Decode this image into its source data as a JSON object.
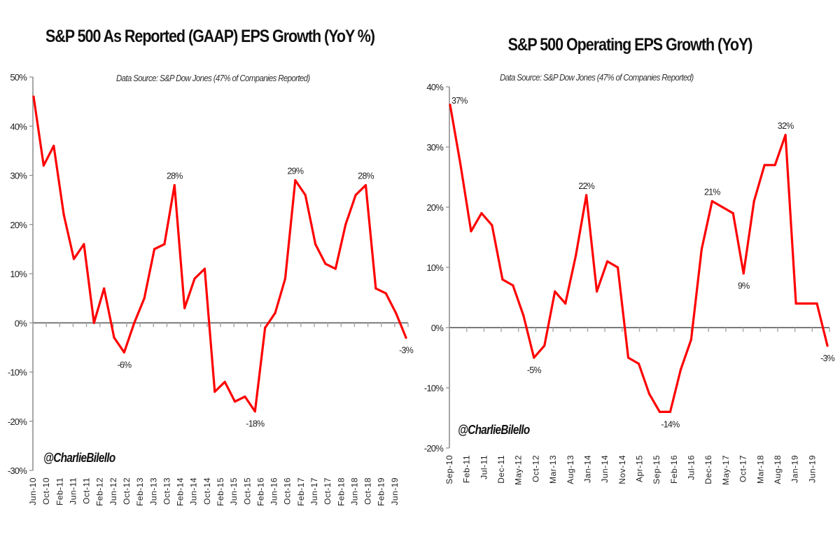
{
  "chart_data": [
    {
      "type": "line",
      "title": "S&P 500 As Reported (GAAP) EPS Growth (YoY %)",
      "subtitle": "Data Source: S&P Dow Jones (47% of Companies Reported)",
      "credit": "@CharlieBilello",
      "xlabel": "",
      "ylabel": "",
      "ylim": [
        -30,
        50
      ],
      "yticks": [
        50,
        40,
        30,
        20,
        10,
        0,
        -10,
        -20,
        -30
      ],
      "ytick_labels": [
        "50%",
        "40%",
        "30%",
        "20%",
        "10%",
        "0%",
        "-10%",
        "-20%",
        "-30%"
      ],
      "category_labels": [
        "Jun-10",
        "Oct-10",
        "Feb-11",
        "Jun-11",
        "Oct-11",
        "Feb-12",
        "Jun-12",
        "Oct-12",
        "Feb-13",
        "Jun-13",
        "Oct-13",
        "Feb-14",
        "Jun-14",
        "Oct-14",
        "Feb-15",
        "Jun-15",
        "Oct-15",
        "Feb-16",
        "Jun-16",
        "Oct-16",
        "Feb-17",
        "Jun-17",
        "Oct-17",
        "Feb-18",
        "Jun-18",
        "Oct-18",
        "Feb-19",
        "Jun-19"
      ],
      "x_range_months": [
        0,
        112
      ],
      "grid": false,
      "series": [
        {
          "name": "GAAP EPS Growth YoY",
          "color": "#ff0000",
          "values": [
            46,
            32,
            36,
            22,
            13,
            16,
            0,
            7,
            -3,
            -6,
            0,
            5,
            15,
            16,
            28,
            3,
            9,
            11,
            -14,
            -12,
            -16,
            -15,
            -18,
            -1,
            2,
            9,
            29,
            26,
            16,
            12,
            11,
            20,
            26,
            28,
            7,
            6,
            2,
            -3
          ]
        }
      ],
      "data_labels": [
        {
          "index": 9,
          "text": "-6%",
          "position": "below"
        },
        {
          "index": 14,
          "text": "28%",
          "position": "above"
        },
        {
          "index": 22,
          "text": "-18%",
          "position": "below"
        },
        {
          "index": 26,
          "text": "29%",
          "position": "above"
        },
        {
          "index": 33,
          "text": "28%",
          "position": "above"
        },
        {
          "index": 37,
          "text": "-3%",
          "position": "below"
        }
      ]
    },
    {
      "type": "line",
      "title": "S&P 500 Operating EPS Growth (YoY)",
      "subtitle": "Data Source: S&P Dow Jones (47% of Companies Reported)",
      "credit": "@CharlieBilello",
      "xlabel": "",
      "ylabel": "",
      "ylim": [
        -20,
        40
      ],
      "yticks": [
        40,
        30,
        20,
        10,
        0,
        -10,
        -20
      ],
      "ytick_labels": [
        "40%",
        "30%",
        "20%",
        "10%",
        "0%",
        "-10%",
        "-20%"
      ],
      "category_labels": [
        "Sep-10",
        "Feb-11",
        "Jul-11",
        "Dec-11",
        "May-12",
        "Oct-12",
        "Mar-13",
        "Aug-13",
        "Jan-14",
        "Jun-14",
        "Nov-14",
        "Apr-15",
        "Sep-15",
        "Feb-16",
        "Jul-16",
        "Dec-16",
        "May-17",
        "Oct-17",
        "Mar-18",
        "Aug-18",
        "Jan-19",
        "Jun-19"
      ],
      "x_range_months": [
        0,
        108
      ],
      "grid": false,
      "series": [
        {
          "name": "Operating EPS Growth YoY",
          "color": "#ff0000",
          "values": [
            37,
            27,
            16,
            19,
            17,
            8,
            7,
            2,
            -5,
            -3,
            6,
            4,
            12,
            22,
            6,
            11,
            10,
            -5,
            -6,
            -11,
            -14,
            -14,
            -7,
            -2,
            13,
            21,
            20,
            19,
            9,
            21,
            27,
            27,
            32,
            4,
            4,
            4,
            -3
          ]
        }
      ],
      "data_labels": [
        {
          "index": 0,
          "text": "37%",
          "position": "above-right"
        },
        {
          "index": 8,
          "text": "-5%",
          "position": "below"
        },
        {
          "index": 13,
          "text": "22%",
          "position": "above"
        },
        {
          "index": 21,
          "text": "-14%",
          "position": "below"
        },
        {
          "index": 25,
          "text": "21%",
          "position": "above"
        },
        {
          "index": 28,
          "text": "9%",
          "position": "below"
        },
        {
          "index": 32,
          "text": "32%",
          "position": "above"
        },
        {
          "index": 36,
          "text": "-3%",
          "position": "below"
        }
      ]
    }
  ]
}
